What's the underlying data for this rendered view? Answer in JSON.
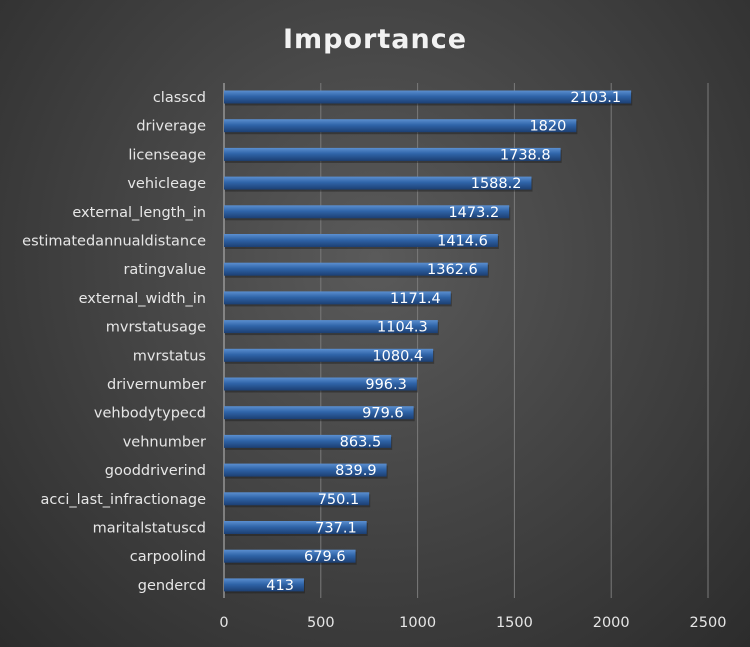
{
  "chart_data": {
    "type": "bar",
    "orientation": "horizontal",
    "title": "Importance",
    "xlabel": "",
    "ylabel": "",
    "xlim": [
      0,
      2500
    ],
    "x_ticks": [
      0,
      500,
      1000,
      1500,
      2000,
      2500
    ],
    "grid": true,
    "legend": "none",
    "categories": [
      "classcd",
      "driverage",
      "licenseage",
      "vehicleage",
      "external_length_in",
      "estimatedannualdistance",
      "ratingvalue",
      "external_width_in",
      "mvrstatusage",
      "mvrstatus",
      "drivernumber",
      "vehbodytypecd",
      "vehnumber",
      "gooddriverind",
      "acci_last_infractionage",
      "maritalstatuscd",
      "carpoolind",
      "gendercd"
    ],
    "values": [
      2103.1,
      1820,
      1738.8,
      1588.2,
      1473.2,
      1414.6,
      1362.6,
      1171.4,
      1104.3,
      1080.4,
      996.3,
      979.6,
      863.5,
      839.9,
      750.1,
      737.1,
      679.6,
      413
    ],
    "data_labels": [
      "2103.1",
      "1820",
      "1738.8",
      "1588.2",
      "1473.2",
      "1414.6",
      "1362.6",
      "1171.4",
      "1104.3",
      "1080.4",
      "996.3",
      "979.6",
      "863.5",
      "839.9",
      "750.1",
      "737.1",
      "679.6",
      "413"
    ],
    "colors": {
      "bar_top": "#5b8fd0",
      "bar_mid": "#2f64a8",
      "bar_bottom": "#1c3f72",
      "gridline": "#7a7a7a",
      "text": "#e6e6e6"
    }
  }
}
